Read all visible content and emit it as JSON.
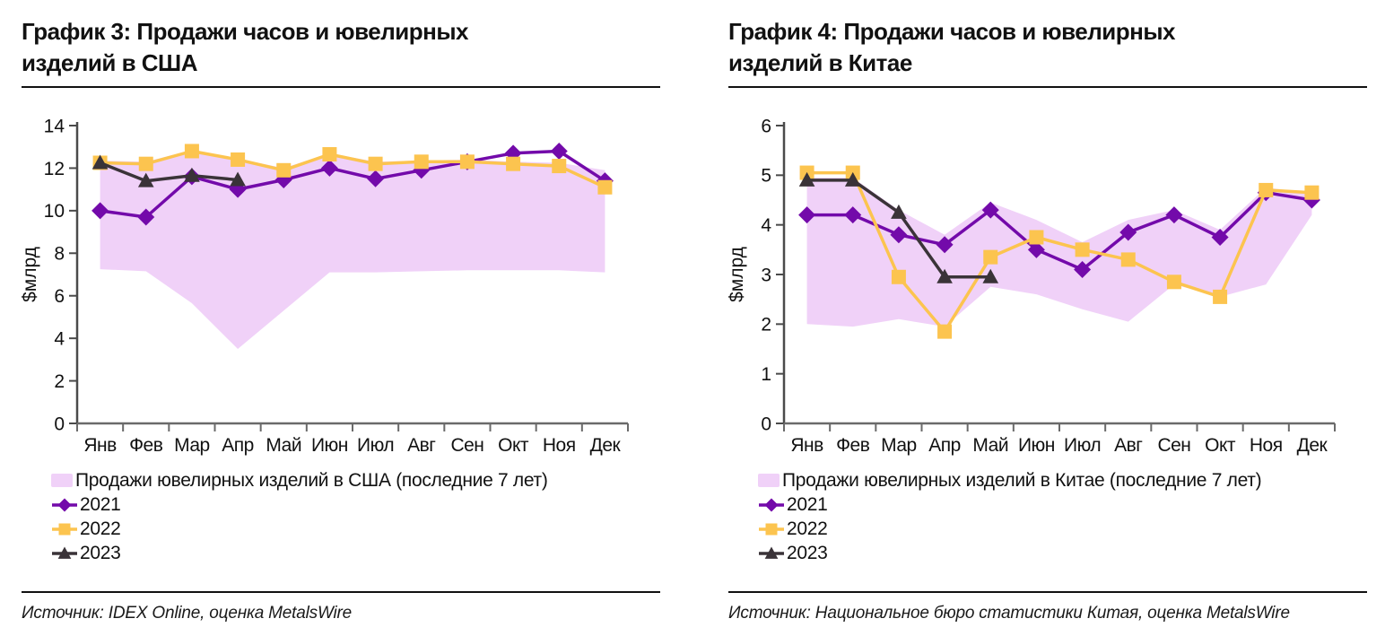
{
  "page": {
    "background": "#ffffff"
  },
  "chart_data": [
    {
      "type": "line",
      "title": "График 3: Продажи часов и ювелирных изделий в США",
      "title_lines": [
        "График 3: Продажи часов и ювелирных",
        "изделий в США"
      ],
      "source": "Источник: IDEX Online, оценка MetalsWire",
      "ylabel": "$млрд",
      "ylim": [
        0,
        14
      ],
      "ytick_step": 2,
      "grid": false,
      "legend_position": "bottom-left",
      "categories": [
        "Янв",
        "Фев",
        "Мар",
        "Апр",
        "Май",
        "Июн",
        "Июл",
        "Авг",
        "Сен",
        "Окт",
        "Ноя",
        "Дек"
      ],
      "band": {
        "label": "Продажи ювелирных изделий в США (последние 7 лет)",
        "color": "#f0d1f8",
        "upper": [
          12.35,
          12.3,
          12.85,
          12.45,
          12.0,
          12.7,
          12.3,
          12.35,
          12.4,
          12.3,
          12.25,
          11.9
        ],
        "lower": [
          7.25,
          7.15,
          5.65,
          3.5,
          5.3,
          7.1,
          7.1,
          7.15,
          7.2,
          7.2,
          7.2,
          7.1
        ]
      },
      "series": [
        {
          "name": "2021",
          "color": "#730aaa",
          "marker": "diamond",
          "values": [
            10.0,
            9.7,
            11.6,
            11.0,
            11.45,
            12.0,
            11.5,
            11.9,
            12.3,
            12.7,
            12.8,
            11.4
          ]
        },
        {
          "name": "2022",
          "color": "#fcc44f",
          "marker": "square",
          "values": [
            12.25,
            12.2,
            12.8,
            12.4,
            11.9,
            12.65,
            12.2,
            12.3,
            12.3,
            12.2,
            12.1,
            11.1
          ]
        },
        {
          "name": "2023",
          "color": "#3a3338",
          "marker": "triangle",
          "values": [
            12.25,
            11.4,
            11.65,
            11.45,
            null,
            null,
            null,
            null,
            null,
            null,
            null,
            null
          ]
        }
      ]
    },
    {
      "type": "line",
      "title": "График 4: Продажи часов и ювелирных изделий в Китае",
      "title_lines": [
        "График 4: Продажи часов и ювелирных",
        "изделий в Китае"
      ],
      "source": "Источник: Национальное бюро статистики Китая, оценка MetalsWire",
      "ylabel": "$млрд",
      "ylim": [
        0,
        6
      ],
      "ytick_step": 1,
      "grid": false,
      "legend_position": "bottom-left",
      "categories": [
        "Янв",
        "Фев",
        "Мар",
        "Апр",
        "Май",
        "Июн",
        "Июл",
        "Авг",
        "Сен",
        "Окт",
        "Ноя",
        "Дек"
      ],
      "band": {
        "label": "Продажи ювелирных изделий в Китае (последние 7 лет)",
        "color": "#f0d1f8",
        "upper": [
          4.95,
          4.95,
          4.3,
          3.8,
          4.45,
          4.1,
          3.65,
          4.1,
          4.3,
          3.9,
          4.75,
          4.65
        ],
        "lower": [
          2.0,
          1.95,
          2.1,
          1.95,
          2.75,
          2.6,
          2.3,
          2.05,
          2.8,
          2.55,
          2.8,
          4.2
        ]
      },
      "series": [
        {
          "name": "2021",
          "color": "#730aaa",
          "marker": "diamond",
          "values": [
            4.2,
            4.2,
            3.8,
            3.6,
            4.3,
            3.5,
            3.1,
            3.85,
            4.2,
            3.75,
            4.65,
            4.5
          ]
        },
        {
          "name": "2022",
          "color": "#fcc44f",
          "marker": "square",
          "values": [
            5.05,
            5.05,
            2.95,
            1.85,
            3.35,
            3.75,
            3.5,
            3.3,
            2.85,
            2.55,
            4.7,
            4.65
          ]
        },
        {
          "name": "2023",
          "color": "#3a3338",
          "marker": "triangle",
          "values": [
            4.9,
            4.9,
            4.25,
            2.95,
            2.95,
            null,
            null,
            null,
            null,
            null,
            null,
            null
          ]
        }
      ]
    }
  ],
  "axis_colors": {
    "y_axis": "#4a4a4a",
    "x_axis": "#6a6a6a",
    "tick_label": "#111111"
  }
}
